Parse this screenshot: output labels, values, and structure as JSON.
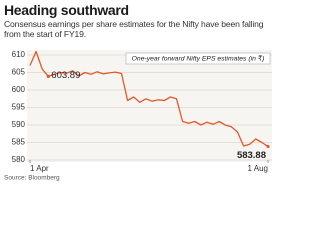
{
  "chart_data": {
    "type": "line",
    "title": "Heading southward",
    "subtitle": "Consensus earnings per share estimates for the Nifty have been falling from the start of FY19.",
    "label": "One-year forward Nifty EPS estimates (in ₹)",
    "source": "Source: Bloomberg",
    "categories": [
      "1 Apr",
      null,
      null,
      null,
      null,
      null,
      null,
      null,
      null,
      null,
      null,
      null,
      null,
      null,
      null,
      null,
      null,
      null,
      null,
      null,
      null,
      null,
      null,
      null,
      null,
      null,
      null,
      null,
      null,
      null,
      null,
      null,
      null,
      null,
      null,
      null,
      null,
      null,
      null,
      "1 Aug"
    ],
    "values": [
      607,
      611,
      606,
      603.89,
      604.5,
      605,
      604.8,
      605.5,
      604,
      605,
      604.5,
      605.2,
      604.6,
      604.9,
      605.1,
      604.7,
      597,
      598,
      596.5,
      597.5,
      596.8,
      597.2,
      597,
      598,
      597.5,
      591,
      590.5,
      591,
      590,
      590.8,
      590.2,
      591,
      590,
      589.5,
      588,
      584,
      584.5,
      586,
      585,
      583.88
    ],
    "color": "#e2582a",
    "ylim": [
      580,
      610
    ],
    "yticks": [
      580,
      585,
      590,
      595,
      600,
      605,
      610
    ],
    "grid": true
  }
}
